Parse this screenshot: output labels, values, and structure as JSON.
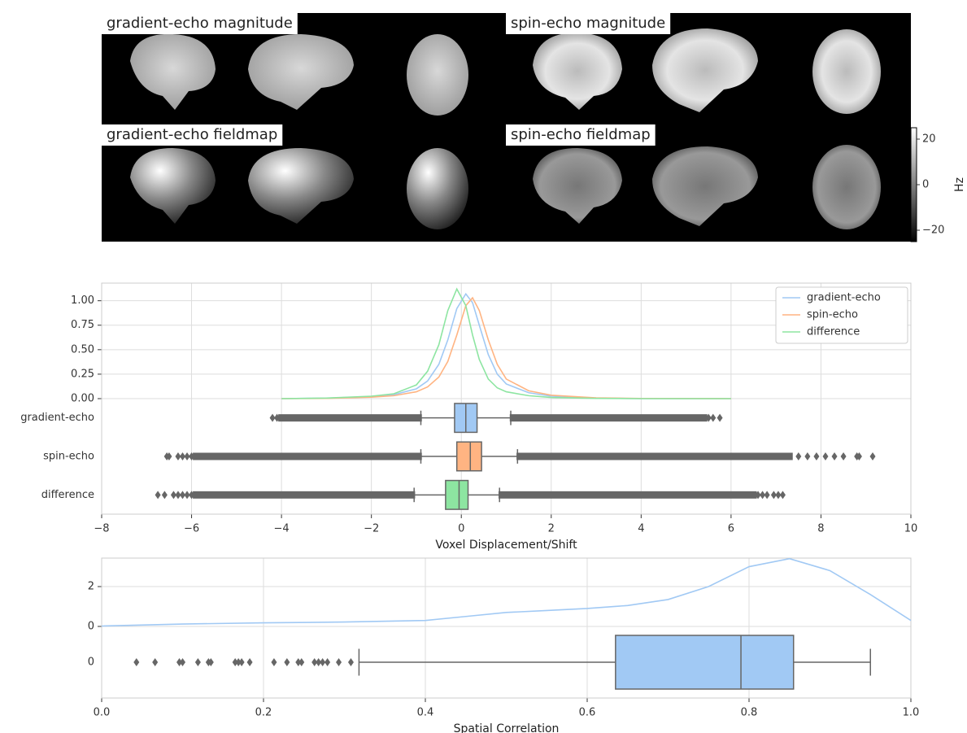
{
  "images": {
    "titles": [
      "gradient-echo magnitude",
      "spin-echo magnitude",
      "gradient-echo fieldmap",
      "spin-echo fieldmap"
    ],
    "colorbar": {
      "label": "Hz",
      "lim": [
        -25,
        25
      ],
      "ticks": [
        20,
        0,
        {
          "value": -20,
          "label": "−20"
        }
      ]
    }
  },
  "chart_data": [
    {
      "type": "kde-box",
      "xlabel": "Voxel Displacement/Shift",
      "xlim": [
        -8,
        10
      ],
      "xticks": [
        {
          "value": -8,
          "label": "−8"
        },
        {
          "value": -6,
          "label": "−6"
        },
        {
          "value": -4,
          "label": "−4"
        },
        {
          "value": -2,
          "label": "−2"
        },
        0,
        2,
        4,
        6,
        8,
        10
      ],
      "ylim": [
        0,
        1.18
      ],
      "yticks": [
        {
          "value": 0,
          "label": "0.00"
        },
        {
          "value": 0.25,
          "label": "0.25"
        },
        {
          "value": 0.5,
          "label": "0.50"
        },
        {
          "value": 0.75,
          "label": "0.75"
        },
        {
          "value": 1,
          "label": "1.00"
        }
      ],
      "grid": true,
      "legend": "upper right",
      "x": [
        -4,
        -3,
        -2,
        -1.5,
        -1,
        -0.75,
        -0.5,
        -0.3,
        -0.1,
        0.1,
        0.25,
        0.4,
        0.6,
        0.8,
        1,
        1.5,
        2,
        3,
        4,
        6
      ],
      "categories": [
        "gradient-echo",
        "spin-echo",
        "difference"
      ],
      "series": [
        {
          "name": "gradient-echo",
          "color": "#a1c9f4",
          "values": [
            0,
            0.005,
            0.02,
            0.04,
            0.1,
            0.18,
            0.35,
            0.6,
            0.92,
            1.07,
            0.98,
            0.75,
            0.45,
            0.25,
            0.15,
            0.06,
            0.025,
            0.005,
            0,
            0
          ],
          "box": {
            "whislo": -0.9,
            "q1": -0.15,
            "med": 0.1,
            "q3": 0.35,
            "whishi": 1.1,
            "flier_ranges": [
              [
                -4.0,
                -0.95
              ],
              [
                1.15,
                5.4
              ]
            ],
            "fliers": [
              -4.2,
              -4.1,
              5.5,
              5.6,
              5.75
            ]
          }
        },
        {
          "name": "spin-echo",
          "color": "#ffb482",
          "values": [
            0,
            0.003,
            0.015,
            0.03,
            0.07,
            0.12,
            0.22,
            0.38,
            0.65,
            0.95,
            1.03,
            0.9,
            0.6,
            0.35,
            0.2,
            0.08,
            0.035,
            0.008,
            0.002,
            0
          ],
          "box": {
            "whislo": -0.9,
            "q1": -0.1,
            "med": 0.2,
            "q3": 0.45,
            "whishi": 1.25,
            "flier_ranges": [
              [
                -5.9,
                -0.95
              ],
              [
                1.3,
                7.3
              ]
            ],
            "fliers": [
              -6.55,
              -6.5,
              -6.3,
              -6.2,
              -6.1,
              -6.0,
              7.5,
              7.7,
              7.9,
              8.1,
              8.3,
              8.5,
              8.8,
              8.85,
              9.15
            ]
          }
        },
        {
          "name": "difference",
          "color": "#8de5a1",
          "values": [
            0,
            0.006,
            0.025,
            0.05,
            0.14,
            0.28,
            0.55,
            0.9,
            1.12,
            0.95,
            0.65,
            0.4,
            0.2,
            0.11,
            0.07,
            0.03,
            0.012,
            0.003,
            0,
            0
          ],
          "box": {
            "whislo": -1.05,
            "q1": -0.35,
            "med": -0.05,
            "q3": 0.15,
            "whishi": 0.85,
            "flier_ranges": [
              [
                -5.9,
                -1.1
              ],
              [
                0.9,
                6.5
              ]
            ],
            "fliers": [
              -6.75,
              -6.6,
              -6.4,
              -6.3,
              -6.2,
              -6.1,
              -6.0,
              6.6,
              6.7,
              6.8,
              6.95,
              7.05,
              7.15
            ]
          }
        }
      ]
    },
    {
      "type": "kde-box",
      "xlabel": "Spatial Correlation",
      "xlim": [
        0,
        1
      ],
      "xticks": [
        {
          "value": 0,
          "label": "0.0"
        },
        {
          "value": 0.2,
          "label": "0.2"
        },
        {
          "value": 0.4,
          "label": "0.4"
        },
        {
          "value": 0.6,
          "label": "0.6"
        },
        {
          "value": 0.8,
          "label": "0.8"
        },
        {
          "value": 1,
          "label": "1.0"
        }
      ],
      "ylim": [
        0,
        3.43
      ],
      "yticks": [
        0,
        2
      ],
      "grid": true,
      "x": [
        0,
        0.1,
        0.2,
        0.3,
        0.4,
        0.45,
        0.5,
        0.55,
        0.6,
        0.65,
        0.7,
        0.75,
        0.8,
        0.85,
        0.9,
        0.95,
        1.0
      ],
      "categories": [
        "0"
      ],
      "series": [
        {
          "color": "#a1c9f4",
          "values": [
            0.02,
            0.12,
            0.18,
            0.22,
            0.3,
            0.5,
            0.7,
            0.8,
            0.9,
            1.05,
            1.35,
            2.0,
            3.0,
            3.4,
            2.8,
            1.6,
            0.3
          ],
          "box": {
            "whislo": 0.318,
            "q1": 0.635,
            "med": 0.79,
            "q3": 0.855,
            "whishi": 0.95,
            "flier_ranges": [],
            "fliers": [
              0.043,
              0.066,
              0.096,
              0.1,
              0.119,
              0.132,
              0.135,
              0.165,
              0.169,
              0.173,
              0.183,
              0.213,
              0.229,
              0.243,
              0.247,
              0.263,
              0.268,
              0.273,
              0.279,
              0.293,
              0.308
            ]
          }
        }
      ]
    }
  ]
}
